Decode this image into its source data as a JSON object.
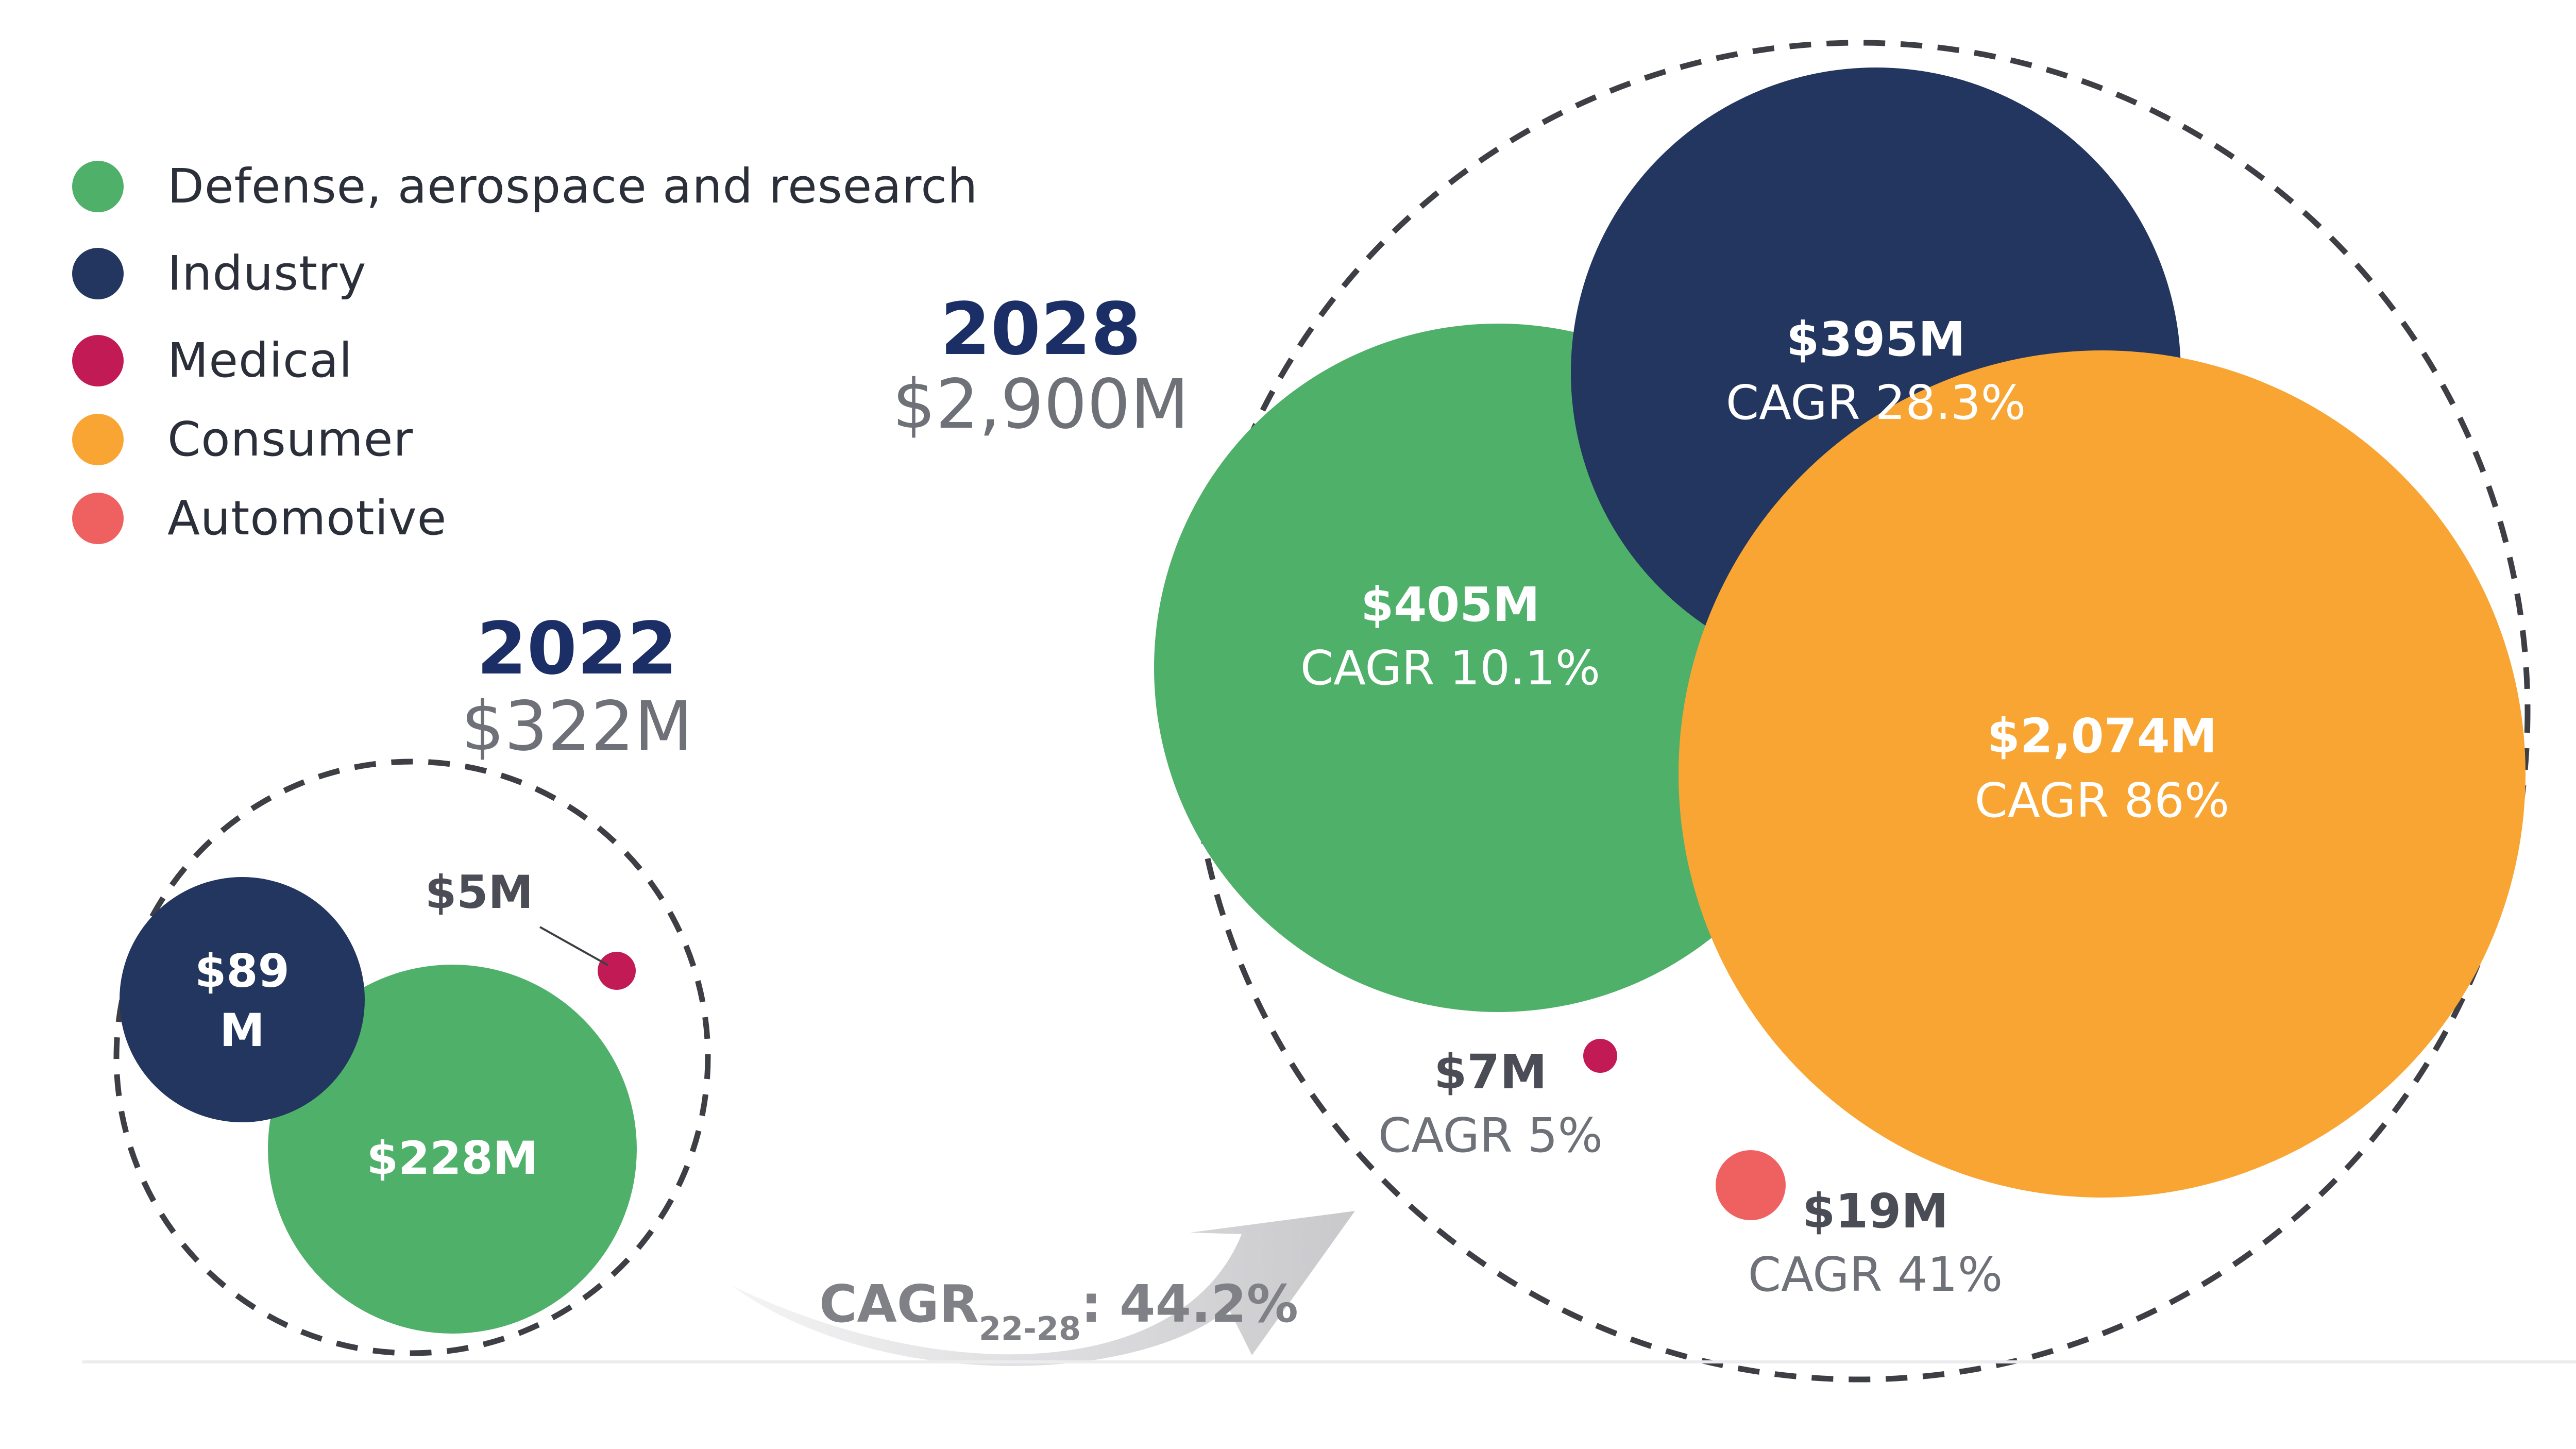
{
  "legend": [
    {
      "label": "Defense, aerospace and research",
      "color": "#4fb06a"
    },
    {
      "label": "Industry",
      "color": "#23365f"
    },
    {
      "label": "Medical",
      "color": "#c21a55"
    },
    {
      "label": "Consumer",
      "color": "#f8a533"
    },
    {
      "label": "Automotive",
      "color": "#ef6160"
    }
  ],
  "y2022": {
    "year": "2022",
    "total": "$322M"
  },
  "y2028": {
    "year": "2028",
    "total": "$2,900M"
  },
  "chart_data": {
    "type": "bubble",
    "unit": "$M",
    "growth": {
      "label": "CAGR",
      "subscript": "22-28",
      "value": ":  44.2%"
    },
    "groups": [
      {
        "year": "2022",
        "total": 322,
        "points": [
          {
            "segment": "Defense, aerospace and research",
            "value": 228,
            "label": "$228M",
            "cagr": ""
          },
          {
            "segment": "Industry",
            "value": 89,
            "label": "$89 M",
            "cagr": ""
          },
          {
            "segment": "Medical",
            "value": 5,
            "label": "$5M",
            "cagr": ""
          }
        ]
      },
      {
        "year": "2028",
        "total": 2900,
        "points": [
          {
            "segment": "Defense, aerospace and research",
            "value": 405,
            "label": "$405M",
            "cagr": "CAGR 10.1%"
          },
          {
            "segment": "Industry",
            "value": 395,
            "label": "$395M",
            "cagr": "CAGR 28.3%"
          },
          {
            "segment": "Consumer",
            "value": 2074,
            "label": "$2,074M",
            "cagr": "CAGR 86%"
          },
          {
            "segment": "Medical",
            "value": 7,
            "label": "$7M",
            "cagr": "CAGR 5%"
          },
          {
            "segment": "Automotive",
            "value": 19,
            "label": "$19M",
            "cagr": "CAGR 41%"
          }
        ]
      }
    ]
  }
}
